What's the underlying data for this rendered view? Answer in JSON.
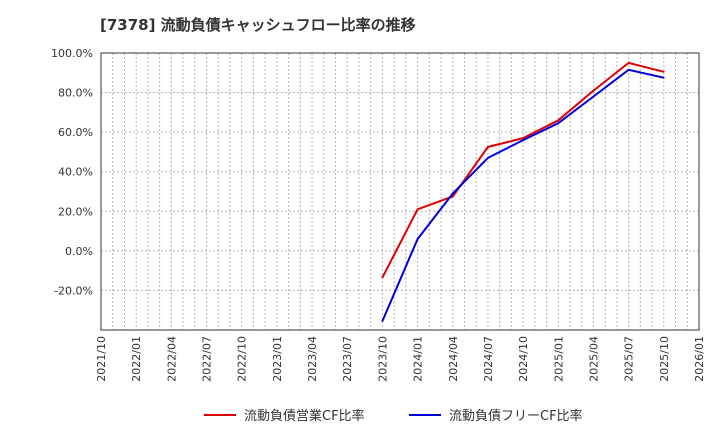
{
  "chart_data": {
    "type": "line",
    "title": "[7378]  流動負債キャッシュフロー比率の推移",
    "xlabel": "",
    "ylabel": "",
    "ylim": [
      -40,
      100
    ],
    "yticks": [
      100,
      80,
      60,
      40,
      20,
      0,
      -20
    ],
    "ytick_labels": [
      "100.0%",
      "80.0%",
      "60.0%",
      "40.0%",
      "20.0%",
      "0.0%",
      "-20.0%"
    ],
    "x_range": [
      "2021/10",
      "2026/01"
    ],
    "x_tick_labels": [
      "2021/10",
      "2022/01",
      "2022/04",
      "2022/07",
      "2022/10",
      "2023/01",
      "2023/04",
      "2023/07",
      "2023/10",
      "2024/01",
      "2024/04",
      "2024/07",
      "2024/10",
      "2025/01",
      "2025/04",
      "2025/07",
      "2025/10",
      "2026/01"
    ],
    "grid": true,
    "legend_position": "bottom",
    "series": [
      {
        "name": "流動負債営業CF比率",
        "color": "#e00000",
        "x": [
          "2023/10",
          "2024/01",
          "2024/04",
          "2024/07",
          "2024/10",
          "2025/01",
          "2025/04",
          "2025/07",
          "2025/10"
        ],
        "values": [
          -13.5,
          21.0,
          27.5,
          52.5,
          57.0,
          66.0,
          81.0,
          95.0,
          90.5
        ]
      },
      {
        "name": "流動負債フリーCF比率",
        "color": "#0000dd",
        "x": [
          "2023/10",
          "2024/01",
          "2024/04",
          "2024/07",
          "2024/10",
          "2025/01",
          "2025/04",
          "2025/07",
          "2025/10"
        ],
        "values": [
          -35.5,
          6.0,
          29.0,
          47.0,
          56.0,
          64.5,
          78.0,
          91.5,
          87.5
        ]
      }
    ]
  }
}
